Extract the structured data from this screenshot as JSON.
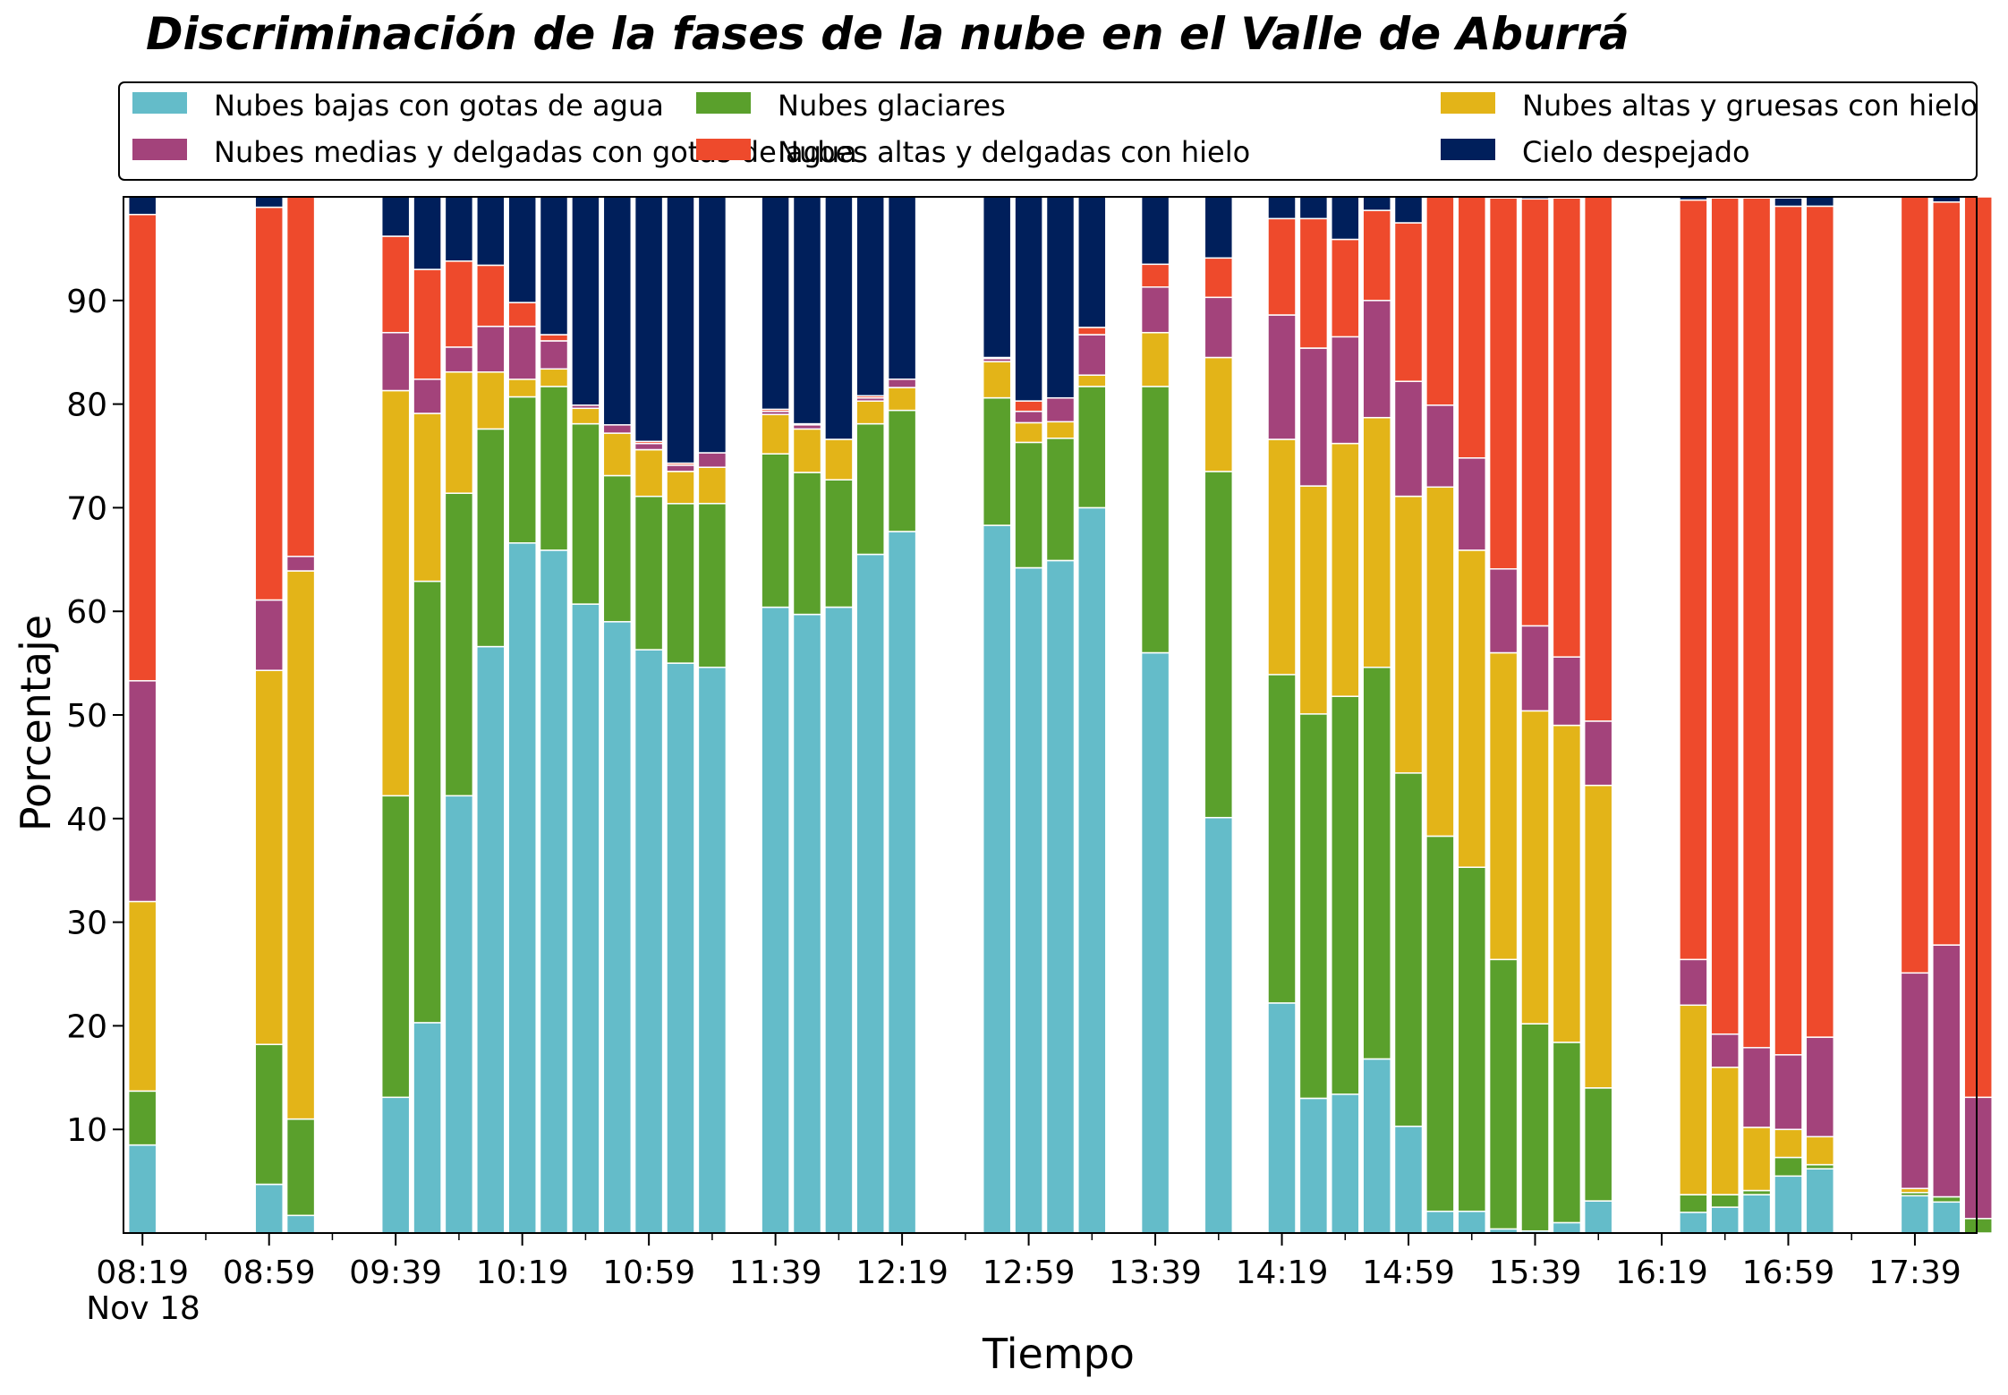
{
  "chart_data": {
    "type": "bar",
    "stacked": true,
    "title": "Discriminación de la fases de la nube en el Valle de Aburrá",
    "xlabel": "Tiempo",
    "ylabel": "Porcentaje",
    "ylim": [
      0,
      100
    ],
    "yticks": [
      10,
      20,
      30,
      40,
      50,
      60,
      70,
      80,
      90
    ],
    "xticks": [
      "08:19",
      "08:59",
      "09:39",
      "10:19",
      "10:59",
      "11:39",
      "12:19",
      "12:59",
      "13:39",
      "14:19",
      "14:59",
      "15:39",
      "16:19",
      "16:59",
      "17:39"
    ],
    "xtick_start_minute": 499,
    "x_date_label": "Nov 18",
    "bar_interval_minutes": 10,
    "legend_position": "top",
    "series": [
      {
        "name": "Nubes bajas con gotas de agua",
        "color": "#64BCC9"
      },
      {
        "name": "Nubes glaciares",
        "color": "#5AA02C"
      },
      {
        "name": "Nubes altas y gruesas con hielo",
        "color": "#E3B418"
      },
      {
        "name": "Nubes medias y delgadas con gotas de agua",
        "color": "#A3437B"
      },
      {
        "name": "Nubes altas y delgadas con hielo",
        "color": "#EE4A2C"
      },
      {
        "name": "Cielo despejado",
        "color": "#001F5B"
      }
    ],
    "bars": [
      {
        "time": "08:19",
        "values": [
          8.5,
          5.2,
          18.3,
          21.3,
          45.0,
          1.7
        ]
      },
      {
        "time": "08:59",
        "values": [
          4.7,
          13.5,
          36.1,
          6.8,
          37.9,
          1.0
        ]
      },
      {
        "time": "09:09",
        "values": [
          1.7,
          9.3,
          52.9,
          1.4,
          34.7,
          0.0
        ]
      },
      {
        "time": "09:39",
        "values": [
          13.1,
          29.1,
          39.1,
          5.6,
          9.3,
          3.8
        ]
      },
      {
        "time": "09:49",
        "values": [
          20.3,
          42.6,
          16.2,
          3.3,
          10.6,
          7.0
        ]
      },
      {
        "time": "09:59",
        "values": [
          42.2,
          29.2,
          11.7,
          2.4,
          8.3,
          6.2
        ]
      },
      {
        "time": "10:09",
        "values": [
          56.6,
          21.0,
          5.5,
          4.4,
          5.9,
          6.6
        ]
      },
      {
        "time": "10:19",
        "values": [
          66.6,
          14.1,
          1.7,
          5.1,
          2.3,
          10.2
        ]
      },
      {
        "time": "10:29",
        "values": [
          65.9,
          15.8,
          1.7,
          2.7,
          0.6,
          13.3
        ]
      },
      {
        "time": "10:39",
        "values": [
          60.7,
          17.4,
          1.5,
          0.3,
          0.0,
          20.1
        ]
      },
      {
        "time": "10:49",
        "values": [
          59.0,
          14.1,
          4.1,
          0.8,
          0.0,
          22.0
        ]
      },
      {
        "time": "10:59",
        "values": [
          56.3,
          14.8,
          4.5,
          0.6,
          0.2,
          23.6
        ]
      },
      {
        "time": "11:09",
        "values": [
          55.0,
          15.4,
          3.1,
          0.6,
          0.2,
          25.7
        ]
      },
      {
        "time": "11:19",
        "values": [
          54.6,
          15.8,
          3.5,
          1.4,
          0.0,
          24.7
        ]
      },
      {
        "time": "11:39",
        "values": [
          60.4,
          14.8,
          3.8,
          0.3,
          0.2,
          20.5
        ]
      },
      {
        "time": "11:49",
        "values": [
          59.7,
          13.7,
          4.2,
          0.4,
          0.1,
          21.9
        ]
      },
      {
        "time": "11:59",
        "values": [
          60.4,
          12.3,
          3.9,
          0.0,
          0.0,
          23.4
        ]
      },
      {
        "time": "12:09",
        "values": [
          65.5,
          12.6,
          2.2,
          0.3,
          0.2,
          19.2
        ]
      },
      {
        "time": "12:19",
        "values": [
          67.7,
          11.7,
          2.2,
          0.8,
          0.0,
          17.6
        ]
      },
      {
        "time": "12:49",
        "values": [
          68.3,
          12.3,
          3.5,
          0.3,
          0.1,
          15.5
        ]
      },
      {
        "time": "12:59",
        "values": [
          64.2,
          12.1,
          1.9,
          1.1,
          1.0,
          19.7
        ]
      },
      {
        "time": "13:09",
        "values": [
          64.9,
          11.8,
          1.6,
          2.3,
          0.0,
          19.4
        ]
      },
      {
        "time": "13:19",
        "values": [
          70.0,
          11.7,
          1.1,
          3.9,
          0.7,
          12.6
        ]
      },
      {
        "time": "13:39",
        "values": [
          56.0,
          25.7,
          5.2,
          4.4,
          2.2,
          6.5
        ]
      },
      {
        "time": "13:59",
        "values": [
          40.1,
          33.4,
          11.0,
          5.8,
          3.8,
          5.9
        ]
      },
      {
        "time": "14:19",
        "values": [
          22.2,
          31.7,
          22.7,
          12.0,
          9.3,
          2.1
        ]
      },
      {
        "time": "14:29",
        "values": [
          13.0,
          37.1,
          22.0,
          13.3,
          12.5,
          2.1
        ]
      },
      {
        "time": "14:39",
        "values": [
          13.4,
          38.4,
          24.4,
          10.3,
          9.4,
          4.1
        ]
      },
      {
        "time": "14:49",
        "values": [
          16.8,
          37.8,
          24.1,
          11.3,
          8.7,
          1.3
        ]
      },
      {
        "time": "14:59",
        "values": [
          10.3,
          34.1,
          26.7,
          11.1,
          15.3,
          2.5
        ]
      },
      {
        "time": "15:09",
        "values": [
          2.1,
          36.2,
          33.7,
          7.9,
          20.1,
          0.0
        ]
      },
      {
        "time": "15:19",
        "values": [
          2.1,
          33.2,
          30.6,
          8.9,
          25.2,
          0.0
        ]
      },
      {
        "time": "15:29",
        "values": [
          0.4,
          26.0,
          29.6,
          8.1,
          35.8,
          0.0
        ]
      },
      {
        "time": "15:39",
        "values": [
          0.2,
          20.0,
          30.2,
          8.2,
          41.2,
          0.3
        ]
      },
      {
        "time": "15:49",
        "values": [
          1.0,
          17.4,
          30.6,
          6.6,
          44.3,
          0.3
        ]
      },
      {
        "time": "15:59",
        "values": [
          3.1,
          10.9,
          29.2,
          6.2,
          50.6,
          0.0
        ]
      },
      {
        "time": "16:29",
        "values": [
          2.0,
          1.7,
          18.3,
          4.4,
          73.3,
          0.3
        ]
      },
      {
        "time": "16:39",
        "values": [
          2.5,
          1.2,
          12.3,
          3.2,
          80.7,
          0.0
        ]
      },
      {
        "time": "16:49",
        "values": [
          3.7,
          0.4,
          6.1,
          7.7,
          82.0,
          0.0
        ]
      },
      {
        "time": "16:59",
        "values": [
          5.5,
          1.8,
          2.7,
          7.2,
          81.9,
          0.8
        ]
      },
      {
        "time": "17:09",
        "values": [
          6.2,
          0.4,
          2.7,
          9.6,
          80.2,
          0.9
        ]
      },
      {
        "time": "17:39",
        "values": [
          3.6,
          0.3,
          0.4,
          20.8,
          74.9,
          0.0
        ]
      },
      {
        "time": "17:49",
        "values": [
          3.0,
          0.5,
          0.0,
          24.3,
          71.7,
          0.5
        ]
      },
      {
        "time": "17:59",
        "values": [
          0.0,
          1.4,
          0.0,
          11.7,
          86.9,
          0.0
        ]
      }
    ]
  }
}
